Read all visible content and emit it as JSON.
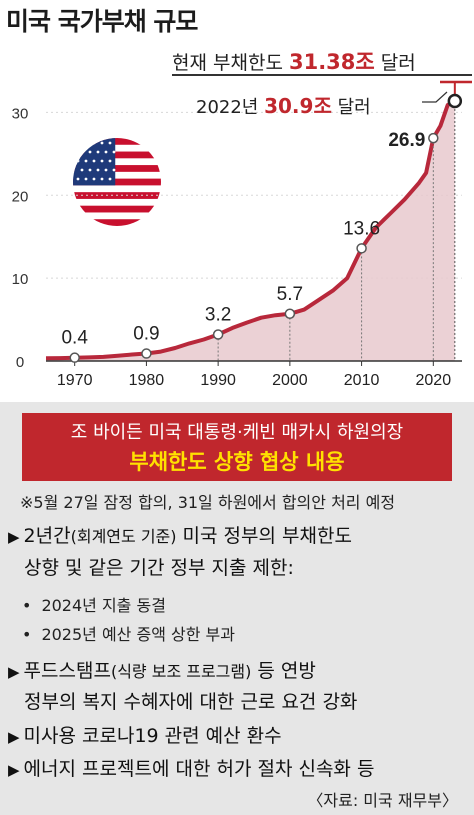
{
  "title": "미국 국가부채 규모",
  "callouts": {
    "current_prefix": "현재 부채한도 ",
    "current_value": "31.38조",
    "current_suffix": " 달러",
    "y2022_prefix": "2022년 ",
    "y2022_value": "30.9조",
    "y2022_suffix": " 달러"
  },
  "chart_data": {
    "type": "area",
    "x_ticks": [
      "1970",
      "1980",
      "1990",
      "2000",
      "2010",
      "2020"
    ],
    "y_ticks": [
      "0",
      "10",
      "20",
      "30"
    ],
    "ylim": [
      0,
      31.5
    ],
    "xlim": [
      1966,
      2024
    ],
    "series": [
      {
        "points": [
          [
            1966,
            0.32
          ],
          [
            1968,
            0.35
          ],
          [
            1970,
            0.4
          ],
          [
            1972,
            0.44
          ],
          [
            1974,
            0.49
          ],
          [
            1976,
            0.63
          ],
          [
            1978,
            0.79
          ],
          [
            1980,
            0.9
          ],
          [
            1982,
            1.14
          ],
          [
            1984,
            1.57
          ],
          [
            1986,
            2.12
          ],
          [
            1988,
            2.6
          ],
          [
            1990,
            3.2
          ],
          [
            1992,
            4.0
          ],
          [
            1994,
            4.64
          ],
          [
            1996,
            5.22
          ],
          [
            1998,
            5.53
          ],
          [
            2000,
            5.7
          ],
          [
            2002,
            6.2
          ],
          [
            2004,
            7.35
          ],
          [
            2006,
            8.5
          ],
          [
            2008,
            10.0
          ],
          [
            2010,
            13.6
          ],
          [
            2012,
            16.1
          ],
          [
            2014,
            17.8
          ],
          [
            2016,
            19.5
          ],
          [
            2018,
            21.5
          ],
          [
            2019,
            22.7
          ],
          [
            2020,
            26.9
          ],
          [
            2021,
            28.4
          ],
          [
            2022,
            30.9
          ],
          [
            2023,
            31.38
          ]
        ]
      }
    ],
    "data_labels": [
      {
        "x": 1970,
        "y": 0.4,
        "label": "0.4"
      },
      {
        "x": 1980,
        "y": 0.9,
        "label": "0.9"
      },
      {
        "x": 1990,
        "y": 3.2,
        "label": "3.2"
      },
      {
        "x": 2000,
        "y": 5.7,
        "label": "5.7"
      },
      {
        "x": 2010,
        "y": 13.6,
        "label": "13.6"
      },
      {
        "x": 2020,
        "y": 26.9,
        "label": "26.9"
      },
      {
        "x": 2023,
        "y": 31.38,
        "label": ""
      }
    ],
    "colors": {
      "line": "#b8283b",
      "fill": "#e8c9ce",
      "limit_line": "#c0272d"
    }
  },
  "headline": {
    "line1": "조 바이든 미국 대통령·케빈 매카시 하원의장",
    "line2": "부채한도 상향 협상 내용"
  },
  "note": "※5월 27일 잠정 합의, 31일 하원에서 합의안 처리 예정",
  "items": [
    {
      "text": "2년간",
      "paren": "(회계연도 기준)",
      "rest": " 미국 정부의 부채한도",
      "cont": "상향 및 같은  기간 정부 지출 제한:"
    },
    {
      "sub": [
        "2024년 지출 동결",
        "2025년 예산 증액 상한 부과"
      ]
    },
    {
      "text": "푸드스탬프",
      "paren": "(식량 보조 프로그램)",
      "rest": " 등 연방",
      "cont": "정부의 복지 수혜자에 대한 근로 요건 강화"
    },
    {
      "text": "미사용 코로나19 관련 예산 환수"
    },
    {
      "text": "에너지 프로젝트에 대한 허가 절차 신속화 등"
    }
  ],
  "source": "〈자료: 미국 재무부〉",
  "icons": {
    "flag": "us-flag-icon",
    "bullet": "triangle-right-icon"
  }
}
